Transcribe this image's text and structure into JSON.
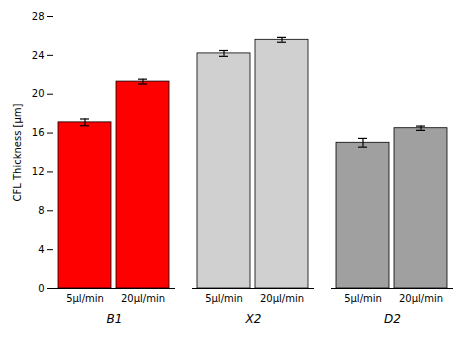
{
  "chart_data": {
    "type": "bar",
    "categories": [
      "5µl/min",
      "20µl/min",
      "5µl/min",
      "20µl/min",
      "5µl/min",
      "20µl/min"
    ],
    "groups": [
      "B1",
      "X2",
      "D2"
    ],
    "values": [
      17.1,
      21.3,
      24.2,
      25.6,
      15.0,
      16.5
    ],
    "errors": [
      0.35,
      0.25,
      0.3,
      0.25,
      0.45,
      0.22
    ],
    "colors": [
      "#ff0000",
      "#ff0000",
      "#d0d0d0",
      "#d0d0d0",
      "#a0a0a0",
      "#a0a0a0"
    ],
    "ylabel": "CFL Thickness [µm]",
    "ylim": [
      0,
      28
    ],
    "yticks": [
      0,
      4,
      8,
      12,
      16,
      20,
      24,
      28
    ]
  }
}
